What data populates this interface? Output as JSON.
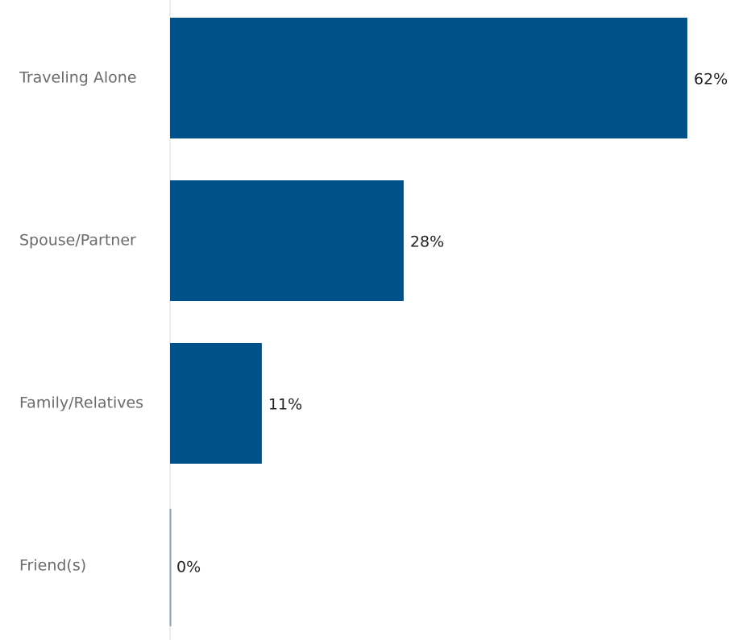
{
  "chart_data": {
    "type": "bar",
    "orientation": "horizontal",
    "title": "",
    "xlabel": "",
    "ylabel": "",
    "categories": [
      "Traveling Alone",
      "Spouse/Partner",
      "Family/Relatives",
      "Friend(s)"
    ],
    "values": [
      62,
      28,
      11,
      0
    ],
    "value_labels": [
      "62%",
      "28%",
      "11%",
      "0%"
    ],
    "value_unit": "%",
    "xlim": [
      0,
      62
    ],
    "grid": false,
    "legend": "none",
    "bar_color": "#00508a",
    "axis_line_color": "#dcdcdc"
  }
}
